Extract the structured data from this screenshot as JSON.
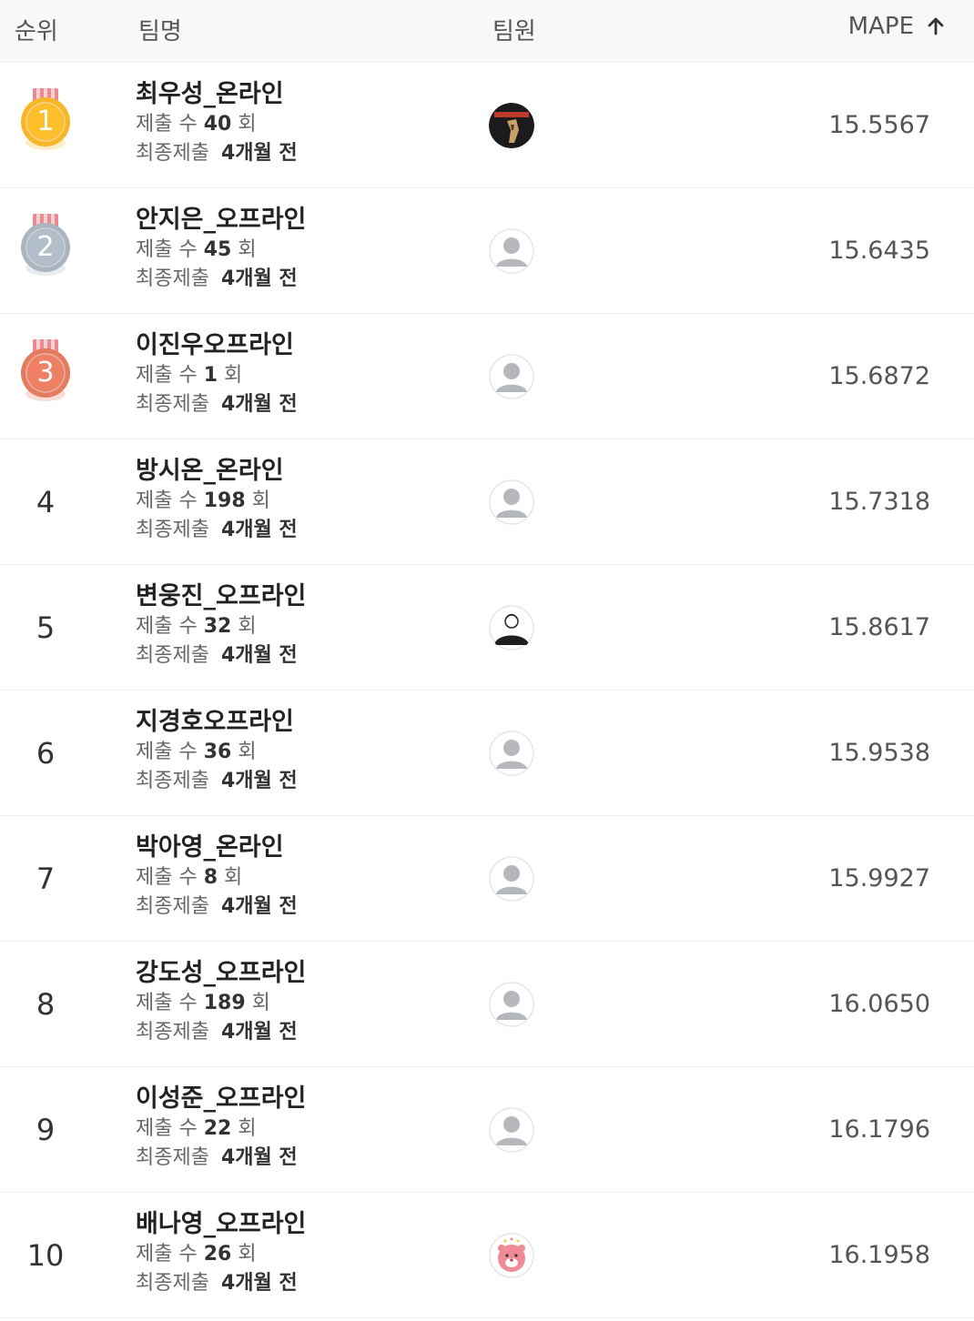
{
  "header": {
    "rank": "순위",
    "team": "팀명",
    "members": "팀원",
    "metric": "MAPE"
  },
  "labels": {
    "submit_prefix": "제출 수",
    "submit_suffix": "회",
    "last_prefix": "최종제출"
  },
  "rows": [
    {
      "rank": "1",
      "team": "최우성_온라인",
      "count": "40",
      "last": "4개월 전",
      "score": "15.5567",
      "medal": "gold",
      "avatar": "photo-avatar"
    },
    {
      "rank": "2",
      "team": "안지은_오프라인",
      "count": "45",
      "last": "4개월 전",
      "score": "15.6435",
      "medal": "silver",
      "avatar": "default-avatar"
    },
    {
      "rank": "3",
      "team": "이진우오프라인",
      "count": "1",
      "last": "4개월 전",
      "score": "15.6872",
      "medal": "bronze",
      "avatar": "default-avatar"
    },
    {
      "rank": "4",
      "team": "방시온_온라인",
      "count": "198",
      "last": "4개월 전",
      "score": "15.7318",
      "medal": "",
      "avatar": "default-avatar"
    },
    {
      "rank": "5",
      "team": "변웅진_오프라인",
      "count": "32",
      "last": "4개월 전",
      "score": "15.8617",
      "medal": "",
      "avatar": "sketch-avatar"
    },
    {
      "rank": "6",
      "team": "지경호오프라인",
      "count": "36",
      "last": "4개월 전",
      "score": "15.9538",
      "medal": "",
      "avatar": "default-avatar"
    },
    {
      "rank": "7",
      "team": "박아영_온라인",
      "count": "8",
      "last": "4개월 전",
      "score": "15.9927",
      "medal": "",
      "avatar": "default-avatar"
    },
    {
      "rank": "8",
      "team": "강도성_오프라인",
      "count": "189",
      "last": "4개월 전",
      "score": "16.0650",
      "medal": "",
      "avatar": "default-avatar"
    },
    {
      "rank": "9",
      "team": "이성준_오프라인",
      "count": "22",
      "last": "4개월 전",
      "score": "16.1796",
      "medal": "",
      "avatar": "default-avatar"
    },
    {
      "rank": "10",
      "team": "배나영_오프라인",
      "count": "26",
      "last": "4개월 전",
      "score": "16.1958",
      "medal": "",
      "avatar": "character-avatar"
    }
  ],
  "colors": {
    "gold": "#f6b628",
    "silver": "#aab5c0",
    "bronze": "#e47a5e",
    "ribbon": "#e88a8e"
  }
}
